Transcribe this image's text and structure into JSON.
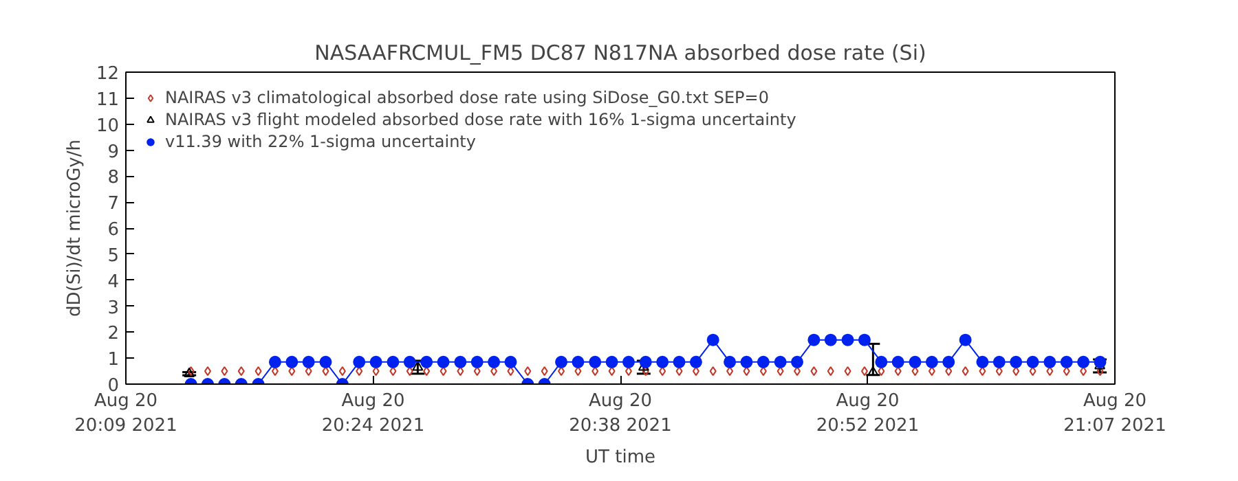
{
  "chart_data": {
    "type": "line",
    "title": "NASAAFRCMUL_FM5 DC87 N817NA absorbed dose rate (Si)",
    "xlabel": "UT time",
    "ylabel": "dD(Si)/dt microGy/h",
    "x": [
      "2021-08-20T20:12:49",
      "2021-08-20T20:13:48",
      "2021-08-20T20:14:47",
      "2021-08-20T20:15:46",
      "2021-08-20T20:16:46",
      "2021-08-20T20:17:45",
      "2021-08-20T20:18:44",
      "2021-08-20T20:19:43",
      "2021-08-20T20:20:43",
      "2021-08-20T20:21:42",
      "2021-08-20T20:22:41",
      "2021-08-20T20:23:40",
      "2021-08-20T20:24:40",
      "2021-08-20T20:25:39",
      "2021-08-20T20:26:38",
      "2021-08-20T20:27:37",
      "2021-08-20T20:28:37",
      "2021-08-20T20:29:36",
      "2021-08-20T20:30:35",
      "2021-08-20T20:31:34",
      "2021-08-20T20:32:34",
      "2021-08-20T20:33:33",
      "2021-08-20T20:34:32",
      "2021-08-20T20:35:31",
      "2021-08-20T20:36:31",
      "2021-08-20T20:37:30",
      "2021-08-20T20:38:29",
      "2021-08-20T20:39:29",
      "2021-08-20T20:40:28",
      "2021-08-20T20:41:27",
      "2021-08-20T20:42:26",
      "2021-08-20T20:43:26",
      "2021-08-20T20:44:25",
      "2021-08-20T20:45:24",
      "2021-08-20T20:46:23",
      "2021-08-20T20:47:23",
      "2021-08-20T20:48:22",
      "2021-08-20T20:49:21",
      "2021-08-20T20:50:20",
      "2021-08-20T20:51:20",
      "2021-08-20T20:52:19",
      "2021-08-20T20:53:18",
      "2021-08-20T20:54:17",
      "2021-08-20T20:55:17",
      "2021-08-20T20:56:16",
      "2021-08-20T20:57:15",
      "2021-08-20T20:58:14",
      "2021-08-20T20:59:14",
      "2021-08-20T21:00:13",
      "2021-08-20T21:01:12",
      "2021-08-20T21:02:11",
      "2021-08-20T21:03:11",
      "2021-08-20T21:04:10",
      "2021-08-20T21:05:09",
      "2021-08-20T21:06:08"
    ],
    "series": [
      {
        "name": "NAIRAS v3 climatological absorbed dose rate using SiDose_G0.txt SEP=0",
        "type": "scatter",
        "marker": "diamond",
        "color": "#c0392b",
        "values": [
          0.5,
          0.5,
          0.5,
          0.5,
          0.5,
          0.5,
          0.5,
          0.5,
          0.5,
          0.5,
          0.5,
          0.5,
          0.5,
          0.5,
          0.5,
          0.5,
          0.5,
          0.5,
          0.5,
          0.5,
          0.5,
          0.5,
          0.5,
          0.5,
          0.5,
          0.5,
          0.5,
          0.5,
          0.5,
          0.5,
          0.5,
          0.5,
          0.5,
          0.5,
          0.5,
          0.5,
          0.5,
          0.5,
          0.5,
          0.5,
          0.5,
          0.5,
          0.5,
          0.5,
          0.5,
          0.5,
          0.5,
          0.5,
          0.5,
          0.5,
          0.5,
          0.5,
          0.5,
          0.5,
          0.5
        ]
      },
      {
        "name": "NAIRAS v3 flight modeled absorbed dose rate with 16% 1-sigma uncertainty",
        "type": "scatter",
        "marker": "triangle",
        "color": "#000000",
        "x": [
          "2021-08-20T20:12:43",
          "2021-08-20T20:26:07",
          "2021-08-20T20:39:22",
          "2021-08-20T20:52:49",
          "2021-08-20T21:06:07"
        ],
        "values": [
          0.4,
          0.65,
          0.65,
          0.45,
          0.7
        ],
        "errors": [
          0.06,
          0.25,
          0.25,
          [
            0.35,
            1.55
          ],
          0.25
        ]
      },
      {
        "name": "v11.39 with 22% 1-sigma uncertainty",
        "marker": "circle",
        "color": "#0022ee",
        "values": [
          0,
          0,
          0,
          0,
          0,
          0.85,
          0.85,
          0.85,
          0.85,
          0,
          0.85,
          0.85,
          0.85,
          0.85,
          0.85,
          0.85,
          0.85,
          0.85,
          0.85,
          0.85,
          0,
          0,
          0.85,
          0.85,
          0.85,
          0.85,
          0.85,
          0.85,
          0.85,
          0.85,
          0.85,
          1.7,
          0.85,
          0.85,
          0.85,
          0.85,
          0.85,
          1.7,
          1.7,
          1.7,
          1.7,
          0.85,
          0.85,
          0.85,
          0.85,
          0.85,
          1.7,
          0.85,
          0.85,
          0.85,
          0.85,
          0.85,
          0.85,
          0.85,
          0.85
        ]
      }
    ],
    "xlim": [
      "2021-08-20T20:09:00",
      "2021-08-20T21:07:00"
    ],
    "xticks": [
      {
        "value": "2021-08-20T20:09:00",
        "label": "Aug 20\n20:09 2021"
      },
      {
        "value": "2021-08-20T20:23:30",
        "label": "Aug 20\n20:24 2021"
      },
      {
        "value": "2021-08-20T20:38:00",
        "label": "Aug 20\n20:38 2021"
      },
      {
        "value": "2021-08-20T20:52:30",
        "label": "Aug 20\n20:52 2021"
      },
      {
        "value": "2021-08-20T21:07:00",
        "label": "Aug 20\n21:07 2021"
      }
    ],
    "ylim": [
      0,
      12
    ],
    "yticks": [
      0,
      1,
      2,
      3,
      4,
      5,
      6,
      7,
      8,
      9,
      10,
      11,
      12
    ],
    "legend": "top left",
    "grid": false
  }
}
